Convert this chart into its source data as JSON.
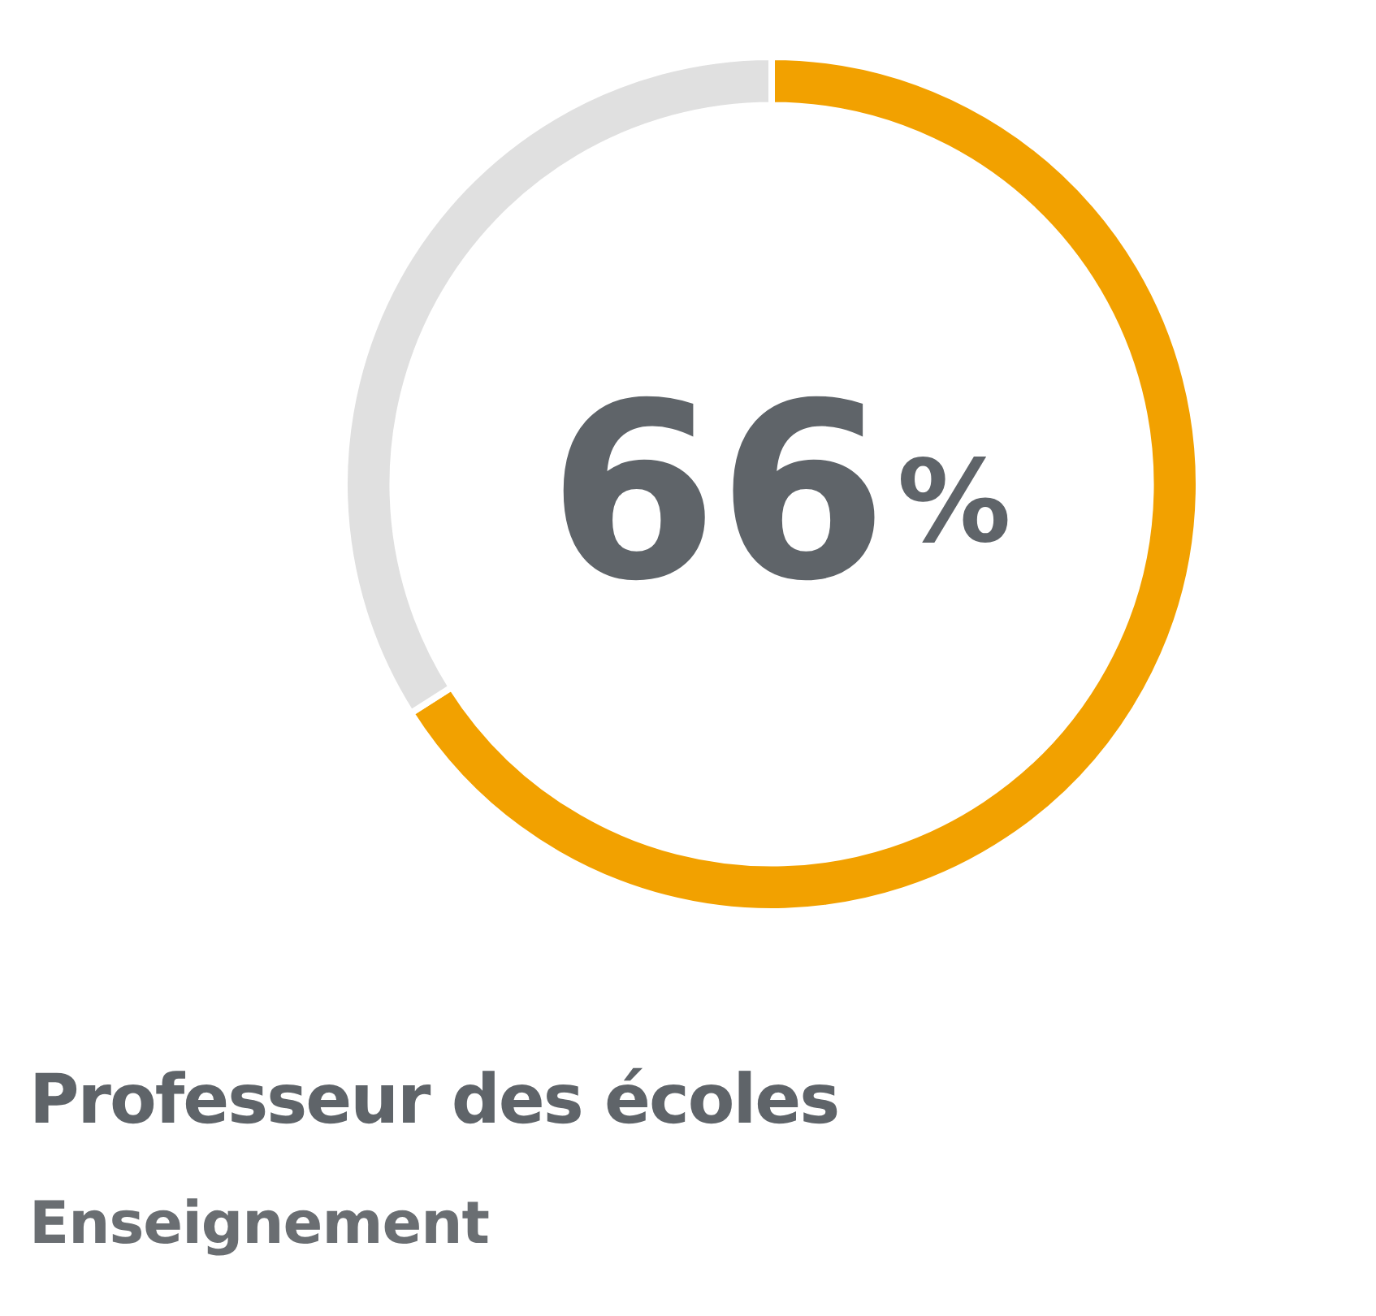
{
  "chart_data": {
    "type": "donut",
    "title": "Professeur des écoles",
    "subtitle": "Enseignement",
    "categories": [
      null,
      null
    ],
    "values": [
      66,
      34
    ],
    "colors": [
      "#f2a100",
      "#e0e0e0"
    ],
    "value_labels": [
      "66%",
      null
    ],
    "legend": false
  }
}
